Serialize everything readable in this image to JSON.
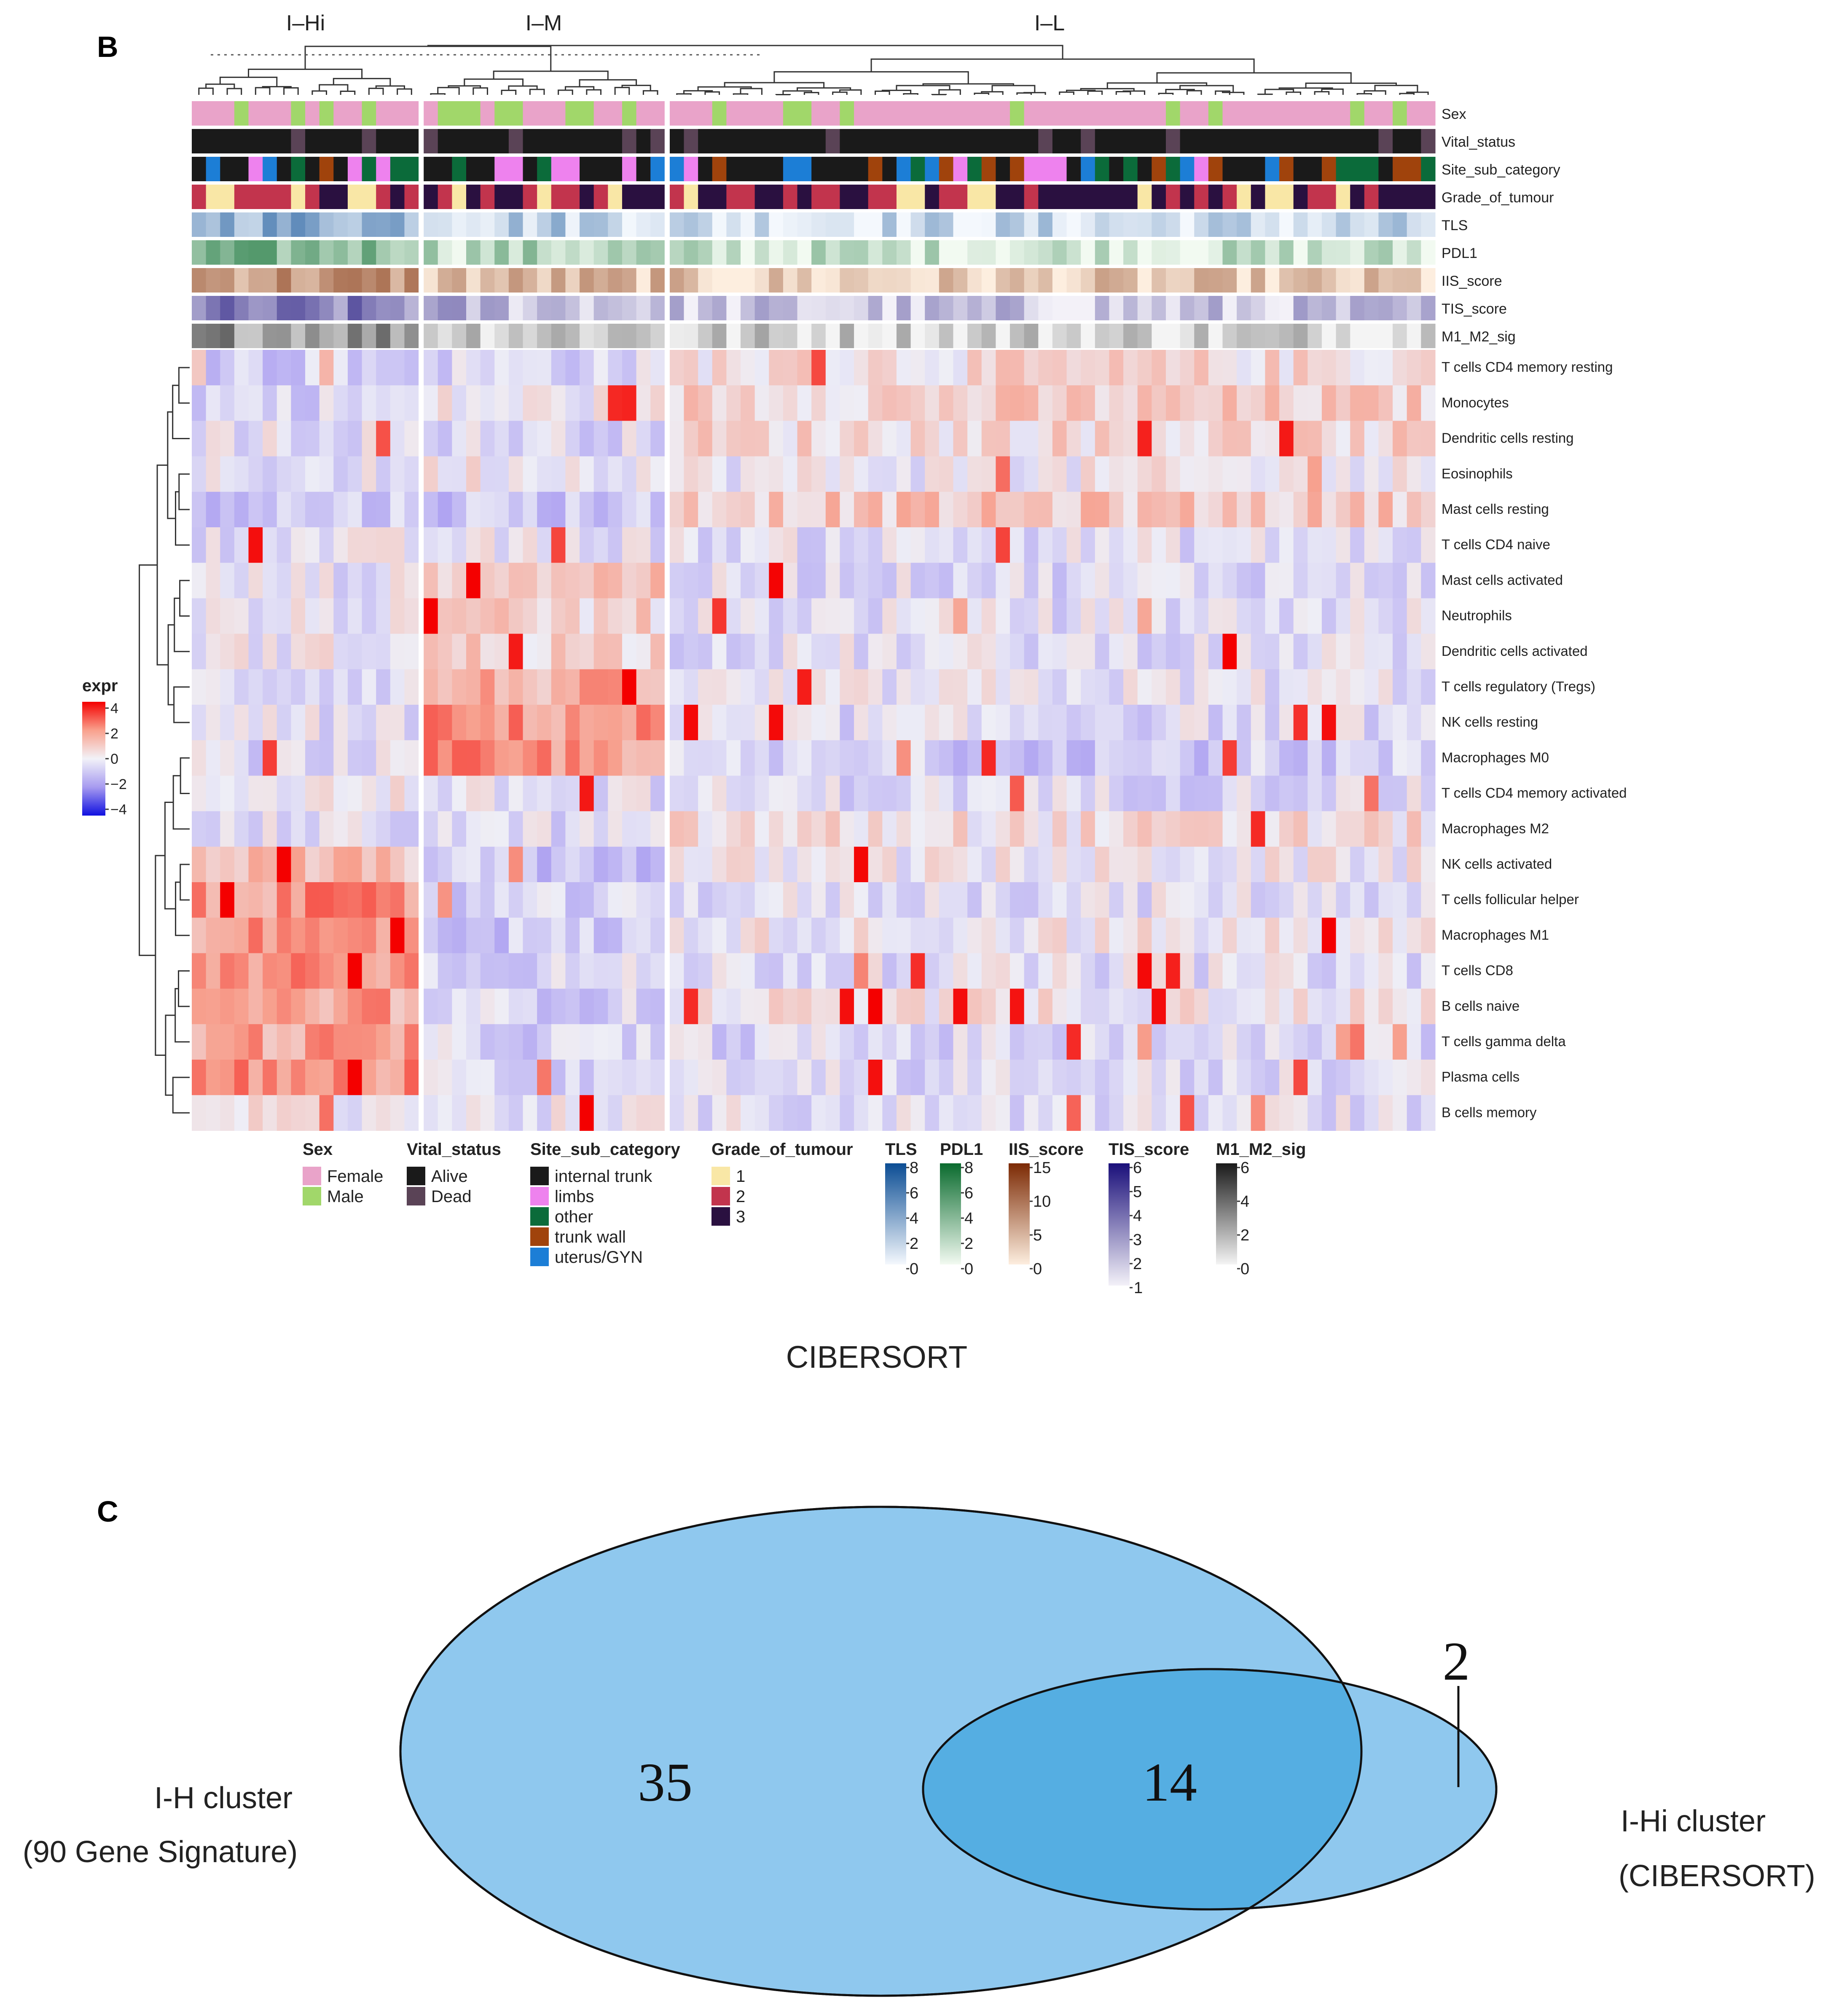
{
  "panel_b": {
    "letter": "B",
    "caption": "CIBERSORT",
    "cluster_labels": [
      "I–Hi",
      "I–M",
      "I–L"
    ]
  },
  "panel_c": {
    "letter": "C",
    "left_label_line1": "I-H cluster",
    "left_label_line2": "(90 Gene Signature)",
    "right_label_line1": "I-Hi cluster",
    "right_label_line2": "(CIBERSORT)"
  },
  "colors": {
    "female": "#E9A3C9",
    "male": "#A1D76A",
    "alive": "#1A1A1A",
    "dead": "#5A4356",
    "internal_trunk": "#1A1A1A",
    "limbs": "#EE82EE",
    "other": "#0B6B3A",
    "trunk_wall": "#A0430C",
    "uterus_gyn": "#1C7ED6",
    "grade1": "#F9E7A6",
    "grade2": "#C2344D",
    "grade3": "#2A1040",
    "venn_big": "#8FC8EE",
    "venn_overlap": "#55AEE2"
  },
  "chart_data": [
    {
      "type": "heatmap",
      "title": "CIBERSORT",
      "legend_title": "expr",
      "legend_ticks": [
        "4",
        "2",
        "0",
        "−2",
        "−4"
      ],
      "color_range": [
        -4,
        4
      ],
      "clusters": [
        {
          "name": "I–Hi",
          "n_samples": 16
        },
        {
          "name": "I–M",
          "n_samples": 17
        },
        {
          "name": "I–L",
          "n_samples": 54
        }
      ],
      "annotation_tracks": [
        "Sex",
        "Vital_status",
        "Site_sub_category",
        "Grade_of_tumour",
        "TLS",
        "PDL1",
        "IIS_score",
        "TIS_score",
        "M1_M2_sig"
      ],
      "rows": [
        "T cells CD4 memory resting",
        "Monocytes",
        "Dendritic cells resting",
        "Eosinophils",
        "Mast cells resting",
        "T cells CD4 naive",
        "Mast cells activated",
        "Neutrophils",
        "Dendritic cells activated",
        "T cells regulatory (Tregs)",
        "NK cells resting",
        "Macrophages M0",
        "T cells CD4 memory activated",
        "Macrophages M2",
        "NK cells activated",
        "T cells follicular helper",
        "Macrophages M1",
        "T cells CD8",
        "B cells naive",
        "T cells gamma delta",
        "Plasma cells",
        "B cells memory"
      ],
      "row_profiles": [
        [
          -0.8,
          -0.5,
          0.5
        ],
        [
          -0.5,
          0.0,
          0.8
        ],
        [
          -0.2,
          -0.4,
          0.6
        ],
        [
          -0.3,
          0.2,
          0.0
        ],
        [
          -0.8,
          -0.9,
          1.0
        ],
        [
          -0.2,
          -0.2,
          -0.3
        ],
        [
          -0.2,
          1.2,
          -0.4
        ],
        [
          -0.2,
          0.6,
          -0.3
        ],
        [
          0.0,
          0.8,
          -0.3
        ],
        [
          -0.3,
          1.5,
          -0.2
        ],
        [
          -0.3,
          2.0,
          -0.4
        ],
        [
          -0.4,
          2.0,
          -0.8
        ],
        [
          0.2,
          -0.3,
          -0.4
        ],
        [
          -0.4,
          -0.4,
          0.4
        ],
        [
          1.2,
          -1.0,
          0.0
        ],
        [
          2.0,
          -0.8,
          -0.3
        ],
        [
          2.0,
          -0.9,
          0.1
        ],
        [
          2.2,
          -0.5,
          -0.3
        ],
        [
          1.8,
          -0.6,
          0.2
        ],
        [
          1.8,
          -0.6,
          -0.5
        ],
        [
          2.0,
          -0.5,
          -0.4
        ],
        [
          0.2,
          -0.2,
          -0.3
        ]
      ],
      "annotation_legends": {
        "Sex": [
          "Female",
          "Male"
        ],
        "Vital_status": [
          "Alive",
          "Dead"
        ],
        "Site_sub_category": [
          "internal trunk",
          "limbs",
          "other",
          "trunk wall",
          "uterus/GYN"
        ],
        "Grade_of_tumour": [
          "1",
          "2",
          "3"
        ],
        "TLS": {
          "ticks": [
            "8",
            "6",
            "4",
            "2",
            "0"
          ],
          "range": [
            0,
            8
          ]
        },
        "PDL1": {
          "ticks": [
            "8",
            "6",
            "4",
            "2",
            "0"
          ],
          "range": [
            0,
            8
          ]
        },
        "IIS_score": {
          "ticks": [
            "15",
            "10",
            "5",
            "0"
          ],
          "range": [
            0,
            15
          ]
        },
        "TIS_score": {
          "ticks": [
            "6",
            "5",
            "4",
            "3",
            "2",
            "1"
          ],
          "range": [
            1,
            6
          ]
        },
        "M1_M2_sig": {
          "ticks": [
            "6",
            "4",
            "2",
            "0"
          ],
          "range": [
            0,
            6
          ]
        }
      }
    },
    {
      "type": "venn",
      "sets": [
        "I-H cluster (90 Gene Signature)",
        "I-Hi cluster (CIBERSORT)"
      ],
      "left_only": "35",
      "overlap": "14",
      "right_only": "2"
    }
  ]
}
